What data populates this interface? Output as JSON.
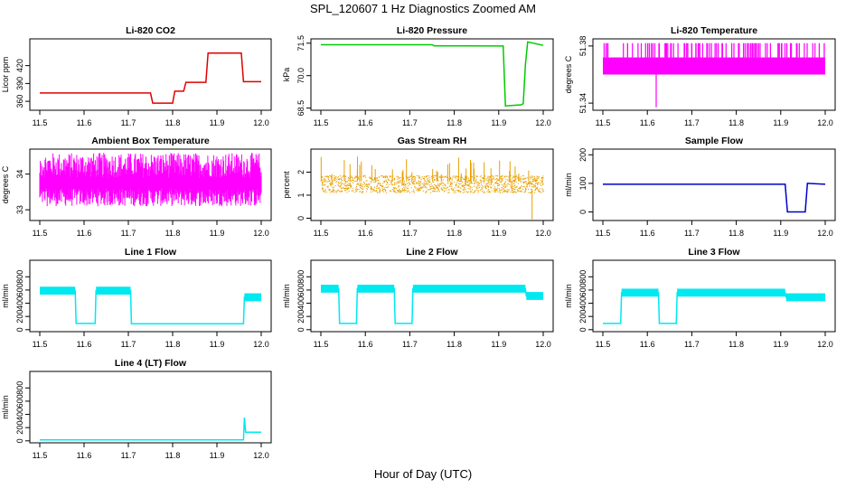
{
  "figure": {
    "title": "SPL_120607  1 Hz Diagnostics Zoomed AM",
    "xlabel": "Hour of Day (UTC)"
  },
  "chart_data": [
    {
      "type": "line",
      "title": "Li-820 CO2",
      "ylabel": "Licor ppm",
      "color": "#e00000",
      "xlim": [
        11.5,
        12.0
      ],
      "ylim": [
        345,
        465
      ],
      "xticks": [
        11.5,
        11.6,
        11.7,
        11.8,
        11.9,
        12.0
      ],
      "yticks": [
        360,
        390,
        420
      ],
      "x": [
        11.5,
        11.75,
        11.755,
        11.8,
        11.805,
        11.825,
        11.83,
        11.875,
        11.88,
        11.955,
        11.96,
        12.0
      ],
      "y": [
        374,
        374,
        357,
        357,
        377,
        377,
        392,
        392,
        441,
        441,
        393,
        393
      ]
    },
    {
      "type": "line",
      "title": "Li-820 Pressure",
      "ylabel": "kPa",
      "color": "#00cc00",
      "xlim": [
        11.5,
        12.0
      ],
      "ylim": [
        68.4,
        71.7
      ],
      "xticks": [
        11.5,
        11.6,
        11.7,
        11.8,
        11.9,
        12.0
      ],
      "yticks": [
        68.5,
        70.0,
        71.5
      ],
      "x": [
        11.5,
        11.75,
        11.755,
        11.91,
        11.915,
        11.95,
        11.955,
        11.96,
        11.965,
        12.0
      ],
      "y": [
        71.43,
        71.43,
        71.38,
        71.37,
        68.6,
        68.65,
        68.7,
        70.5,
        71.56,
        71.4
      ]
    },
    {
      "type": "line",
      "title": "Li-820 Temperature",
      "ylabel": "degrees C",
      "color": "#ff00ff",
      "xlim": [
        11.5,
        12.0
      ],
      "ylim": [
        51.335,
        51.385
      ],
      "xticks": [
        11.5,
        11.6,
        11.7,
        11.8,
        11.9,
        12.0
      ],
      "yticks": [
        51.34,
        51.38
      ],
      "x": [
        11.5,
        12.0
      ],
      "y": [
        51.36,
        51.36
      ]
    },
    {
      "type": "line",
      "title": "Ambient Box Temperature",
      "ylabel": "degrees C",
      "color": "#ff00ff",
      "xlim": [
        11.5,
        12.0
      ],
      "ylim": [
        32.7,
        34.7
      ],
      "xticks": [
        11.5,
        11.6,
        11.7,
        11.8,
        11.9,
        12.0
      ],
      "yticks": [
        33.0,
        34.0
      ],
      "x": [
        11.5,
        12.0
      ],
      "y": [
        33.7,
        33.7
      ]
    },
    {
      "type": "scatter",
      "title": "Gas Stream RH",
      "ylabel": "percent",
      "color": "#e8a000",
      "xlim": [
        11.5,
        12.0
      ],
      "ylim": [
        -0.1,
        3.0
      ],
      "xticks": [
        11.5,
        11.6,
        11.7,
        11.8,
        11.9,
        12.0
      ],
      "yticks": [
        0.0,
        1.0,
        2.0
      ],
      "x": [
        11.5,
        12.0
      ],
      "y": [
        1.5,
        1.5
      ]
    },
    {
      "type": "line",
      "title": "Sample Flow",
      "ylabel": "ml/min",
      "color": "#0000cc",
      "xlim": [
        11.5,
        12.0
      ],
      "ylim": [
        -30,
        220
      ],
      "xticks": [
        11.5,
        11.6,
        11.7,
        11.8,
        11.9,
        12.0
      ],
      "yticks": [
        0,
        100,
        200
      ],
      "x": [
        11.5,
        11.91,
        11.915,
        11.955,
        11.96,
        12.0
      ],
      "y": [
        97,
        97,
        0,
        0,
        100,
        97
      ]
    },
    {
      "type": "line",
      "title": "Line 1 Flow",
      "ylabel": "ml/min",
      "color": "#00e8f0",
      "xlim": [
        11.5,
        12.0
      ],
      "ylim": [
        -30,
        1050
      ],
      "xticks": [
        11.5,
        11.6,
        11.7,
        11.8,
        11.9,
        12.0
      ],
      "yticks": [
        0,
        200,
        400,
        600,
        800
      ],
      "x": [
        11.5,
        11.58,
        11.582,
        11.625,
        11.627,
        11.705,
        11.707,
        11.96,
        11.962,
        12.0
      ],
      "y": [
        590,
        590,
        95,
        95,
        590,
        590,
        90,
        90,
        490,
        490
      ]
    },
    {
      "type": "line",
      "title": "Line 2 Flow",
      "ylabel": "ml/min",
      "color": "#00e8f0",
      "xlim": [
        11.5,
        12.0
      ],
      "ylim": [
        -30,
        1050
      ],
      "xticks": [
        11.5,
        11.6,
        11.7,
        11.8,
        11.9,
        12.0
      ],
      "yticks": [
        0,
        200,
        400,
        600,
        800
      ],
      "x": [
        11.5,
        11.54,
        11.542,
        11.58,
        11.582,
        11.665,
        11.667,
        11.705,
        11.707,
        11.96,
        11.962,
        12.0
      ],
      "y": [
        620,
        620,
        95,
        95,
        620,
        620,
        95,
        95,
        620,
        620,
        510,
        510
      ]
    },
    {
      "type": "line",
      "title": "Line 3 Flow",
      "ylabel": "ml/min",
      "color": "#00e8f0",
      "xlim": [
        11.5,
        12.0
      ],
      "ylim": [
        -30,
        1050
      ],
      "xticks": [
        11.5,
        11.6,
        11.7,
        11.8,
        11.9,
        12.0
      ],
      "yticks": [
        0,
        200,
        400,
        600,
        800
      ],
      "x": [
        11.5,
        11.54,
        11.542,
        11.625,
        11.627,
        11.665,
        11.667,
        11.91,
        11.912,
        12.0
      ],
      "y": [
        95,
        95,
        560,
        560,
        95,
        95,
        560,
        560,
        490,
        490
      ]
    },
    {
      "type": "line",
      "title": "Line 4 (LT) Flow",
      "ylabel": "ml/min",
      "color": "#00e8f0",
      "xlim": [
        11.5,
        12.0
      ],
      "ylim": [
        -30,
        1050
      ],
      "xticks": [
        11.5,
        11.6,
        11.7,
        11.8,
        11.9,
        12.0
      ],
      "yticks": [
        0,
        200,
        400,
        600,
        800
      ],
      "x": [
        11.5,
        11.96,
        11.962,
        11.965,
        11.967,
        12.0
      ],
      "y": [
        15,
        15,
        350,
        130,
        130,
        130
      ]
    }
  ]
}
